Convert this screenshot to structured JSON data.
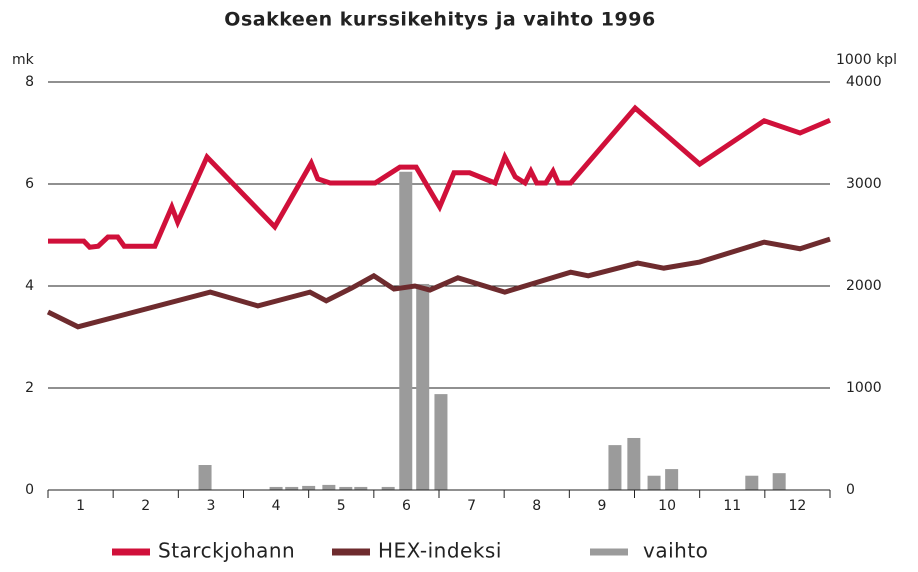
{
  "chart_data": {
    "type": "line",
    "title": "Osakkeen kurssikehitys ja vaihto 1996",
    "y_label": "mk",
    "y2_label": "1000 kpl",
    "categories": [
      "1",
      "2",
      "3",
      "4",
      "5",
      "6",
      "7",
      "8",
      "9",
      "10",
      "11",
      "12"
    ],
    "xlim": [
      0,
      12
    ],
    "xticks": [
      0,
      1,
      2,
      3,
      4,
      5,
      6,
      7,
      8,
      9,
      10,
      11,
      12
    ],
    "ylim": [
      0,
      8
    ],
    "yticks": [
      0,
      2,
      4,
      6,
      8
    ],
    "y2lim": [
      0,
      4000
    ],
    "y2ticks": [
      0,
      1000,
      2000,
      3000,
      4000
    ],
    "grid": true,
    "legend": "bottom",
    "series": [
      {
        "name": "vaihto",
        "type": "bar",
        "axis": "y2",
        "color": "#9b9b9b",
        "x": [
          2.41,
          3.5,
          3.74,
          4.0,
          4.31,
          4.57,
          4.8,
          5.22,
          5.49,
          5.75,
          6.03,
          8.7,
          8.99,
          9.3,
          9.57,
          10.8,
          11.22
        ],
        "values": [
          245,
          30,
          30,
          40,
          50,
          30,
          30,
          30,
          3120,
          2020,
          940,
          440,
          510,
          140,
          205,
          140,
          165
        ]
      },
      {
        "name": "Starckjohann",
        "type": "line",
        "color": "#d0103a",
        "x": [
          0,
          0.55,
          0.64,
          0.77,
          0.92,
          1.07,
          1.17,
          1.64,
          1.9,
          1.99,
          2.44,
          3.48,
          4.04,
          4.14,
          4.33,
          5.02,
          5.4,
          5.65,
          6.01,
          6.23,
          6.47,
          6.86,
          7.01,
          7.17,
          7.32,
          7.41,
          7.5,
          7.64,
          7.75,
          7.83,
          8.02,
          9.01,
          10.0,
          10.99,
          11.54,
          12
        ],
        "values": [
          4.88,
          4.88,
          4.76,
          4.78,
          4.96,
          4.96,
          4.78,
          4.78,
          5.55,
          5.25,
          6.53,
          5.16,
          6.41,
          6.1,
          6.02,
          6.02,
          6.33,
          6.33,
          5.55,
          6.22,
          6.22,
          6.02,
          6.53,
          6.14,
          6.02,
          6.25,
          6.02,
          6.02,
          6.25,
          6.02,
          6.02,
          7.49,
          6.39,
          7.24,
          7.0,
          7.25
        ]
      },
      {
        "name": "HEX-indeksi",
        "type": "line",
        "color": "#6e2b2e",
        "x": [
          0,
          0.46,
          2.49,
          3.22,
          4.02,
          4.27,
          4.66,
          5.0,
          5.31,
          5.63,
          5.86,
          6.29,
          7.01,
          8.02,
          8.29,
          9.05,
          9.45,
          10.0,
          10.99,
          11.54,
          12
        ],
        "values": [
          3.49,
          3.2,
          3.88,
          3.61,
          3.88,
          3.71,
          3.96,
          4.2,
          3.94,
          4.0,
          3.92,
          4.16,
          3.88,
          4.27,
          4.2,
          4.45,
          4.35,
          4.47,
          4.86,
          4.73,
          4.92
        ]
      }
    ]
  }
}
